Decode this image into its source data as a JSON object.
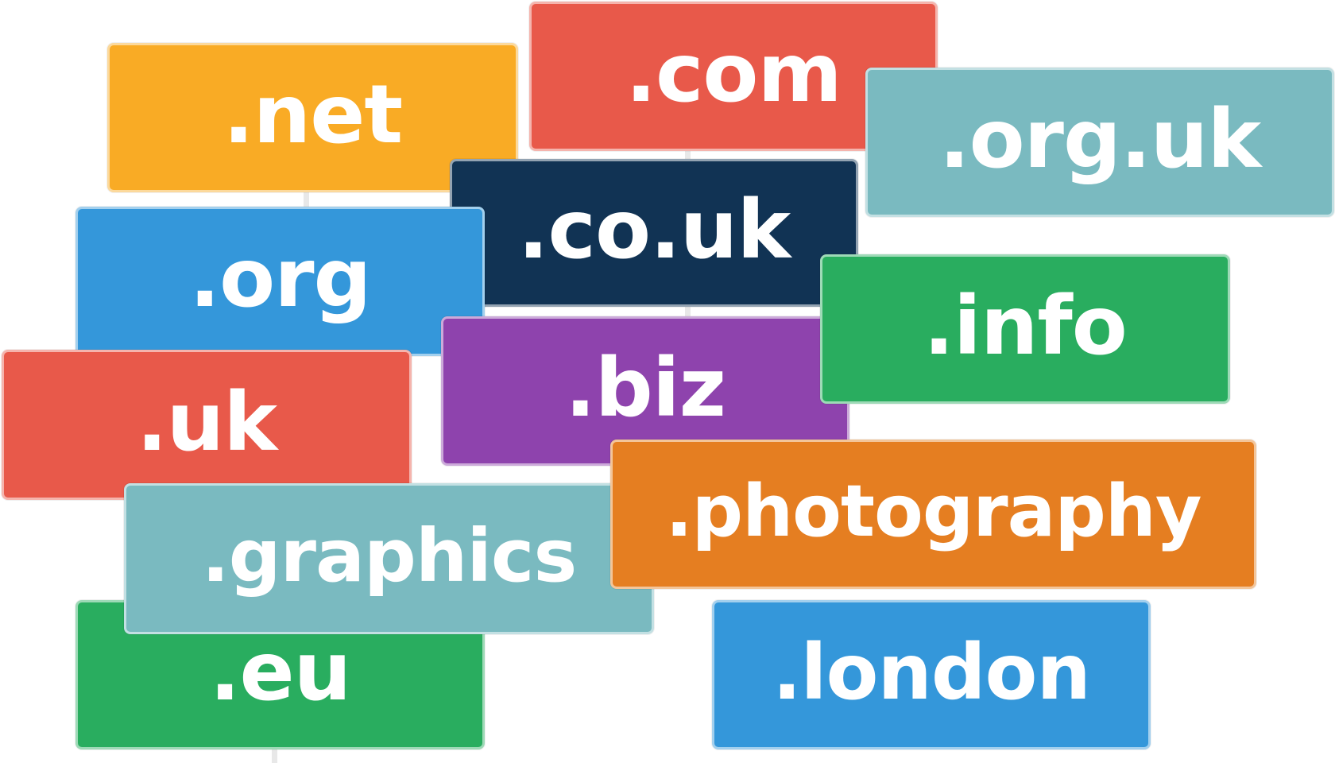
{
  "colors": {
    "background": "#ffffff",
    "stem": "#e8e8e8",
    "text": "#ffffff"
  },
  "tags": {
    "com": {
      "label": ".com",
      "color": "#e8594a"
    },
    "net": {
      "label": ".net",
      "color": "#f9ab25"
    },
    "org_uk": {
      "label": ".org.uk",
      "color": "#7abac0"
    },
    "co_uk": {
      "label": ".co.uk",
      "color": "#113354"
    },
    "org": {
      "label": ".org",
      "color": "#3497da"
    },
    "info": {
      "label": ".info",
      "color": "#29ad5f"
    },
    "uk": {
      "label": ".uk",
      "color": "#e8594a"
    },
    "biz": {
      "label": ".biz",
      "color": "#8e43ad"
    },
    "photography": {
      "label": ".photography",
      "color": "#e57e21"
    },
    "graphics": {
      "label": ".graphics",
      "color": "#7abac0"
    },
    "eu": {
      "label": ".eu",
      "color": "#29ad5f"
    },
    "london": {
      "label": ".london",
      "color": "#3497da"
    }
  }
}
